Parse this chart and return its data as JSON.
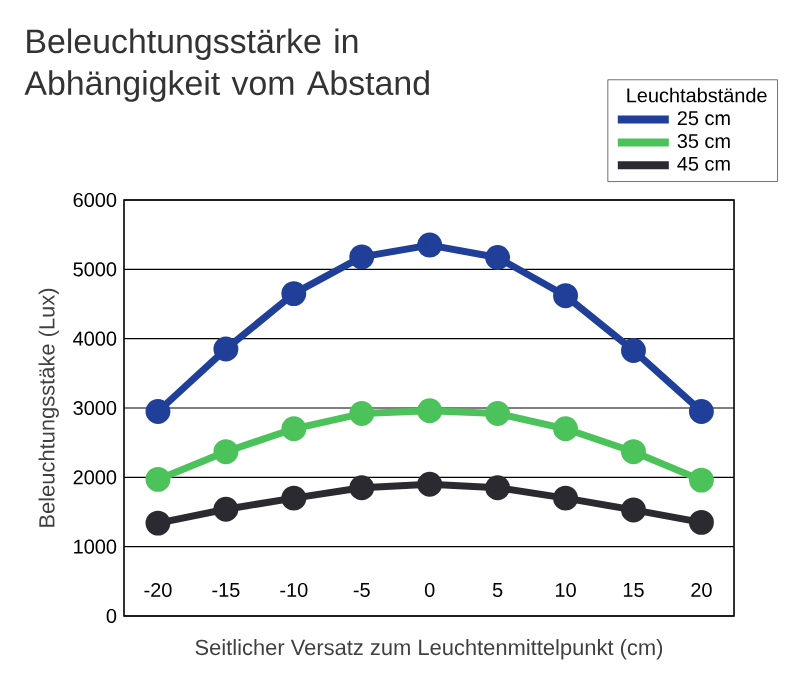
{
  "chart_data": {
    "type": "line",
    "title": "Beleuchtungsstärke in Abhängigkeit vom Abstand",
    "xlabel": "Seitlicher Versatz zum Leuchtenmittelpunkt (cm)",
    "ylabel": "Beleuchtungsstäke (Lux)",
    "legend_title": "Leuchtabstände",
    "x": [
      -20,
      -15,
      -10,
      -5,
      0,
      5,
      10,
      15,
      20
    ],
    "series": [
      {
        "name": "25 cm",
        "color": "#1f3f99",
        "values": [
          2950,
          3850,
          4650,
          5180,
          5350,
          5170,
          4620,
          3830,
          2950
        ]
      },
      {
        "name": "35 cm",
        "color": "#4cc35a",
        "values": [
          1970,
          2370,
          2700,
          2920,
          2960,
          2920,
          2700,
          2370,
          1960
        ]
      },
      {
        "name": "45 cm",
        "color": "#2a2a30",
        "values": [
          1340,
          1540,
          1700,
          1850,
          1900,
          1850,
          1700,
          1530,
          1350
        ]
      }
    ],
    "xlim": [
      -22.5,
      22.4
    ],
    "ylim": [
      0,
      6000
    ],
    "xticks": [
      -20,
      -15,
      -10,
      -5,
      0,
      5,
      10,
      15,
      20
    ],
    "yticks": [
      0,
      1000,
      2000,
      3000,
      4000,
      5000,
      6000
    ],
    "grid": "y",
    "legend": "top right",
    "marker": "circle",
    "line_style": "solid"
  }
}
